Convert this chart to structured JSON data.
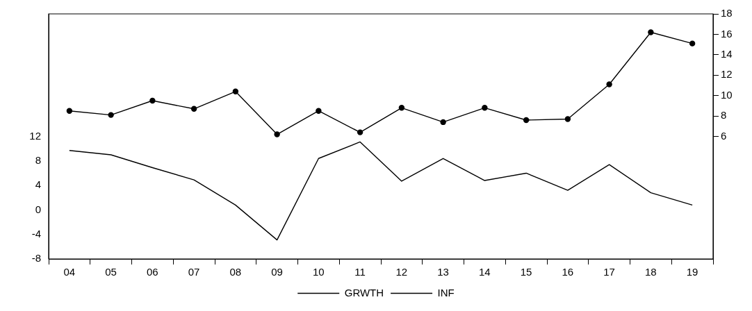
{
  "chart_data": {
    "type": "line",
    "categories": [
      "04",
      "05",
      "06",
      "07",
      "08",
      "09",
      "10",
      "11",
      "12",
      "13",
      "14",
      "15",
      "16",
      "17",
      "18",
      "19"
    ],
    "series": [
      {
        "name": "GRWTH",
        "color": "#000000",
        "marker": "none",
        "values": [
          9.7,
          9.0,
          6.9,
          4.9,
          0.8,
          -4.9,
          8.4,
          11.1,
          4.7,
          8.4,
          4.8,
          6.0,
          3.2,
          7.4,
          2.8,
          0.8
        ]
      },
      {
        "name": "INF",
        "color": "#000000",
        "marker": "circle",
        "axis": "y2",
        "values": [
          8.5,
          8.1,
          9.5,
          8.7,
          10.4,
          6.2,
          8.5,
          6.4,
          8.8,
          7.4,
          8.8,
          7.6,
          7.7,
          11.1,
          16.2,
          15.1
        ]
      }
    ],
    "ylim": [
      -8,
      32
    ],
    "yticks": [
      -8,
      -4,
      0,
      4,
      8,
      12
    ],
    "y2lim": [
      -6,
      18
    ],
    "y2ticks": [
      6,
      8,
      10,
      12,
      14,
      16,
      18
    ],
    "legend": "bottom",
    "line_style": "solid"
  }
}
